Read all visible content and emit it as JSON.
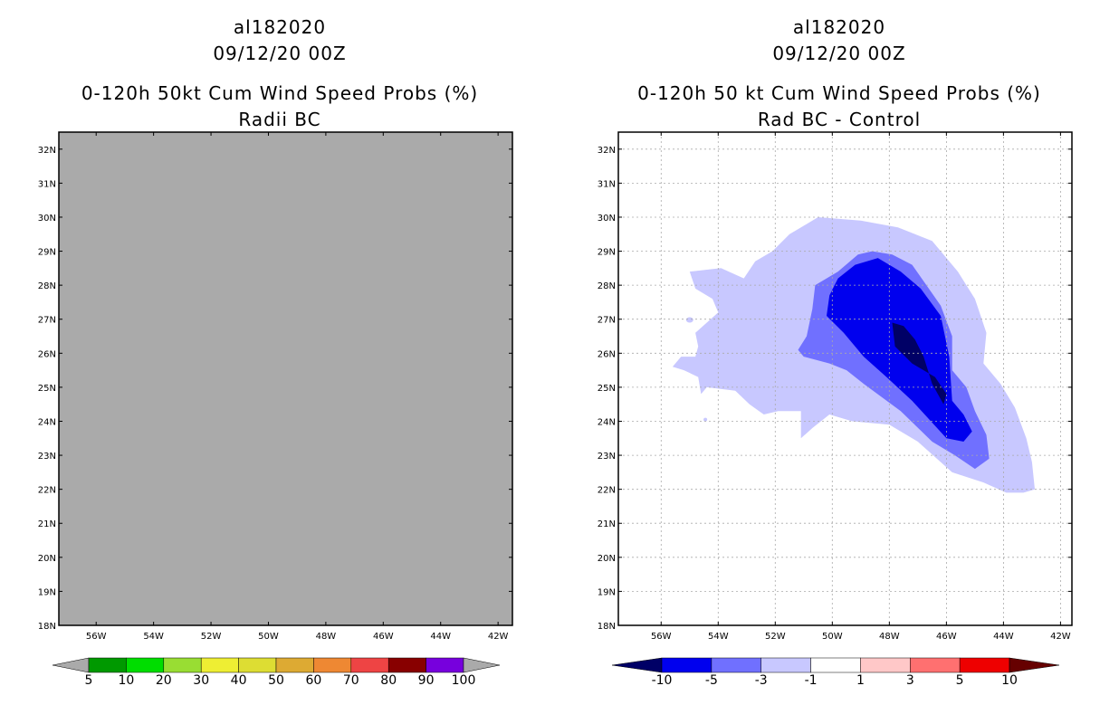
{
  "chart_data": [
    {
      "type": "heatmap",
      "title_lines": [
        "al182020",
        "09/12/20 00Z",
        "0-120h 50kt Cum Wind Speed Probs (%)",
        "Radii BC"
      ],
      "lon_range": [
        57.3,
        41.5
      ],
      "lat_range": [
        18,
        32.5
      ],
      "xticks": [
        56,
        54,
        52,
        50,
        48,
        46,
        44,
        42
      ],
      "xtick_labels": [
        "56W",
        "54W",
        "52W",
        "50W",
        "48W",
        "46W",
        "44W",
        "42W"
      ],
      "yticks": [
        18,
        19,
        20,
        21,
        22,
        23,
        24,
        25,
        26,
        27,
        28,
        29,
        30,
        31,
        32
      ],
      "ytick_labels": [
        "18N",
        "19N",
        "20N",
        "21N",
        "22N",
        "23N",
        "24N",
        "25N",
        "26N",
        "27N",
        "28N",
        "29N",
        "30N",
        "31N",
        "32N"
      ],
      "grid": false,
      "field": "no data",
      "fill_color": "#aaaaaa",
      "colorbar": {
        "labels": [
          "5",
          "10",
          "20",
          "30",
          "40",
          "50",
          "60",
          "70",
          "80",
          "90",
          "100"
        ],
        "colors": [
          "#aaaaaa",
          "#009900",
          "#00dd00",
          "#99dd33",
          "#eeee33",
          "#dddd33",
          "#ddaa33",
          "#ee8833",
          "#ee4444",
          "#880000",
          "#7700dd",
          "#aaaaaa"
        ]
      }
    },
    {
      "type": "heatmap",
      "title_lines": [
        "al182020",
        "09/12/20 00Z",
        "0-120h 50 kt Cum Wind Speed Probs (%)",
        "Rad BC - Control"
      ],
      "lon_range": [
        57.5,
        41.6
      ],
      "lat_range": [
        18,
        32.5
      ],
      "xticks": [
        56,
        54,
        52,
        50,
        48,
        46,
        44,
        42
      ],
      "xtick_labels": [
        "56W",
        "54W",
        "52W",
        "50W",
        "48W",
        "46W",
        "44W",
        "42W"
      ],
      "yticks": [
        18,
        19,
        20,
        21,
        22,
        23,
        24,
        25,
        26,
        27,
        28,
        29,
        30,
        31,
        32
      ],
      "ytick_labels": [
        "18N",
        "19N",
        "20N",
        "21N",
        "22N",
        "23N",
        "24N",
        "25N",
        "26N",
        "27N",
        "28N",
        "29N",
        "30N",
        "31N",
        "32N"
      ],
      "grid": true,
      "contour_levels": [
        {
          "range": "-3 to -1",
          "color": "#c8c8ff",
          "points": [
            [
              52.1,
              29.0
            ],
            [
              51.5,
              29.5
            ],
            [
              50.5,
              30.0
            ],
            [
              49.0,
              29.9
            ],
            [
              47.7,
              29.7
            ],
            [
              46.5,
              29.3
            ],
            [
              45.6,
              28.4
            ],
            [
              45.0,
              27.6
            ],
            [
              44.6,
              26.6
            ],
            [
              44.7,
              25.7
            ],
            [
              44.1,
              25.1
            ],
            [
              43.6,
              24.4
            ],
            [
              43.2,
              23.5
            ],
            [
              43.0,
              22.8
            ],
            [
              42.9,
              22.0
            ],
            [
              43.3,
              21.9
            ],
            [
              43.9,
              21.9
            ],
            [
              44.7,
              22.2
            ],
            [
              45.8,
              22.5
            ],
            [
              47.0,
              23.4
            ],
            [
              48.0,
              23.9
            ],
            [
              49.3,
              24.0
            ],
            [
              50.1,
              24.2
            ],
            [
              50.7,
              23.8
            ],
            [
              51.1,
              23.5
            ],
            [
              51.1,
              24.3
            ],
            [
              51.9,
              24.3
            ],
            [
              52.4,
              24.2
            ],
            [
              52.9,
              24.5
            ],
            [
              53.4,
              24.9
            ],
            [
              54.4,
              25.0
            ],
            [
              54.6,
              24.8
            ],
            [
              54.7,
              25.3
            ],
            [
              55.2,
              25.5
            ],
            [
              55.6,
              25.6
            ],
            [
              55.3,
              25.9
            ],
            [
              54.8,
              25.9
            ],
            [
              54.7,
              26.2
            ],
            [
              54.8,
              26.6
            ],
            [
              54.0,
              27.2
            ],
            [
              54.2,
              27.6
            ],
            [
              54.8,
              27.9
            ],
            [
              55.0,
              28.4
            ],
            [
              53.9,
              28.5
            ],
            [
              53.1,
              28.2
            ],
            [
              52.7,
              28.7
            ]
          ]
        },
        {
          "range": "-5 to -3",
          "color": "#7070ff",
          "points": [
            [
              49.8,
              28.4
            ],
            [
              49.1,
              28.9
            ],
            [
              48.6,
              29.0
            ],
            [
              47.9,
              28.9
            ],
            [
              47.2,
              28.6
            ],
            [
              46.7,
              28.0
            ],
            [
              46.2,
              27.4
            ],
            [
              45.8,
              26.5
            ],
            [
              45.8,
              25.5
            ],
            [
              45.3,
              25.0
            ],
            [
              45.0,
              24.3
            ],
            [
              44.6,
              23.6
            ],
            [
              44.5,
              22.9
            ],
            [
              45.0,
              22.6
            ],
            [
              45.7,
              23.0
            ],
            [
              46.5,
              23.4
            ],
            [
              47.6,
              24.3
            ],
            [
              48.9,
              25.1
            ],
            [
              49.5,
              25.5
            ],
            [
              50.1,
              25.7
            ],
            [
              51.0,
              25.9
            ],
            [
              51.2,
              26.1
            ],
            [
              50.9,
              26.5
            ],
            [
              50.7,
              27.3
            ],
            [
              50.6,
              28.0
            ]
          ]
        },
        {
          "range": "-10 to -5",
          "color": "#0000ee",
          "points": [
            [
              50.2,
              27.1
            ],
            [
              50.1,
              27.7
            ],
            [
              49.8,
              28.2
            ],
            [
              49.2,
              28.6
            ],
            [
              48.4,
              28.8
            ],
            [
              47.6,
              28.4
            ],
            [
              46.9,
              27.9
            ],
            [
              46.2,
              27.1
            ],
            [
              45.9,
              25.9
            ],
            [
              45.8,
              24.6
            ],
            [
              45.4,
              24.2
            ],
            [
              45.1,
              23.7
            ],
            [
              45.4,
              23.4
            ],
            [
              46.0,
              23.5
            ],
            [
              47.2,
              24.6
            ],
            [
              48.1,
              25.3
            ],
            [
              48.9,
              25.9
            ],
            [
              49.6,
              26.6
            ]
          ]
        },
        {
          "range": "< -10",
          "color": "#000066",
          "points": [
            [
              47.9,
              26.9
            ],
            [
              47.5,
              26.8
            ],
            [
              47.1,
              26.4
            ],
            [
              46.8,
              25.9
            ],
            [
              46.5,
              25.1
            ],
            [
              46.1,
              24.5
            ],
            [
              46.0,
              24.8
            ],
            [
              46.4,
              25.3
            ],
            [
              47.2,
              25.7
            ],
            [
              47.8,
              26.2
            ]
          ]
        }
      ],
      "colorbar": {
        "labels": [
          "-10",
          "-5",
          "-3",
          "-1",
          "1",
          "3",
          "5",
          "10"
        ],
        "colors": [
          "#000066",
          "#0000ee",
          "#7070ff",
          "#c8c8ff",
          "#ffffff",
          "#ffc8c8",
          "#ff7070",
          "#ee0000",
          "#660000"
        ]
      }
    }
  ]
}
